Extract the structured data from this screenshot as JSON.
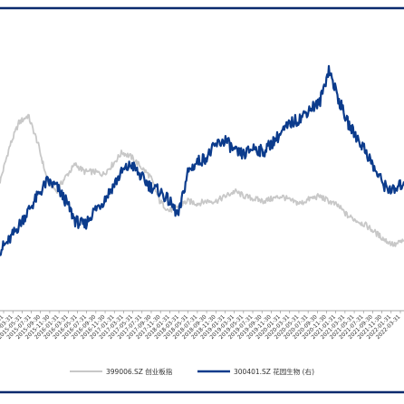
{
  "chart_data": {
    "type": "line",
    "title": "",
    "xlabel": "",
    "ylabel": "",
    "grid": false,
    "legend_position": "bottom",
    "x_tick_labels": [
      "2015-01-31",
      "2015-03-31",
      "2015-05-31",
      "2015-07-31",
      "2015-09-30",
      "2015-11-30",
      "2016-01-31",
      "2016-03-31",
      "2016-05-31",
      "2016-07-31",
      "2016-09-30",
      "2016-11-30",
      "2017-01-31",
      "2017-03-31",
      "2017-05-31",
      "2017-07-31",
      "2017-09-30",
      "2017-11-30",
      "2018-01-31",
      "2018-03-31",
      "2018-05-31",
      "2018-07-31",
      "2018-09-30",
      "2018-11-30",
      "2019-01-31",
      "2019-03-31",
      "2019-05-31",
      "2019-07-31",
      "2019-09-30",
      "2019-11-30",
      "2020-01-31",
      "2020-03-31",
      "2020-05-31",
      "2020-07-31",
      "2020-09-30",
      "2020-11-30",
      "2021-01-31",
      "2021-03-31",
      "2021-05-31",
      "2021-07-31",
      "2021-09-30",
      "2021-11-30",
      "2022-01-31",
      "2022-03-31"
    ],
    "x_index": [
      0,
      43
    ],
    "y_range": [
      0,
      100
    ],
    "series": [
      {
        "name": "399006.SZ 创业板指",
        "color": "#c8c8c8",
        "axis": "left",
        "x": [
          0,
          1,
          2,
          3,
          4,
          5,
          6,
          7,
          8,
          9,
          10,
          11,
          12,
          13,
          14,
          15,
          16,
          17,
          18,
          19,
          20,
          21,
          22,
          23,
          24,
          25,
          26,
          27,
          28,
          29,
          30,
          31,
          32,
          33,
          34,
          35,
          36,
          37,
          38,
          39,
          40,
          41,
          42,
          43
        ],
        "values": [
          48,
          62,
          72,
          75,
          64,
          49,
          44,
          50,
          55,
          52,
          52,
          51,
          55,
          60,
          58,
          54,
          50,
          40,
          36,
          38,
          40,
          39,
          40,
          40,
          42,
          44,
          42,
          41,
          40,
          41,
          42,
          40,
          39,
          41,
          42,
          40,
          38,
          34,
          32,
          30,
          27,
          24,
          22,
          24
        ]
      },
      {
        "name": "300401.SZ 花园生物 (右)",
        "color": "#0b3b8c",
        "axis": "right",
        "x": [
          0,
          1,
          2,
          3,
          4,
          5,
          6,
          7,
          8,
          9,
          10,
          11,
          12,
          13,
          14,
          15,
          16,
          17,
          18,
          19,
          20,
          21,
          22,
          23,
          24,
          25,
          26,
          27,
          28,
          29,
          30,
          31,
          32,
          33,
          34,
          35,
          36,
          37,
          38,
          39,
          40,
          41,
          42,
          43
        ],
        "values": [
          20,
          24,
          30,
          36,
          42,
          48,
          46,
          40,
          32,
          30,
          36,
          40,
          46,
          52,
          55,
          50,
          46,
          44,
          40,
          34,
          52,
          56,
          58,
          63,
          65,
          60,
          59,
          62,
          60,
          64,
          68,
          72,
          74,
          78,
          80,
          94,
          82,
          72,
          66,
          60,
          52,
          46,
          44,
          48
        ]
      }
    ],
    "legend": [
      "399006.SZ 创业板指",
      "300401.SZ 花园生物 (右)"
    ]
  },
  "colors": {
    "frame_line": "#0b2a6e",
    "axis_line": "#888888",
    "tick_text": "#333333"
  }
}
